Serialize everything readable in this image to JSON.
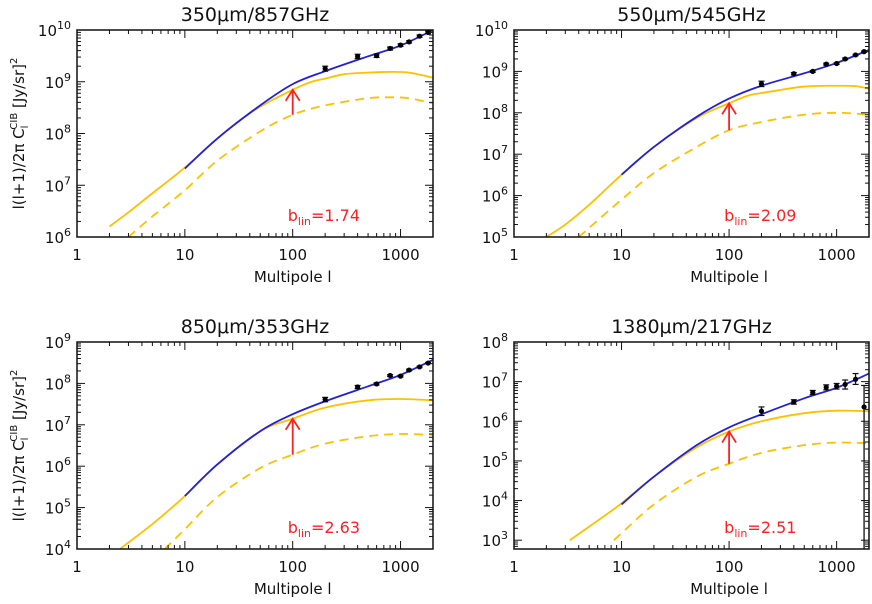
{
  "chart_data": [
    {
      "type": "line",
      "title": "350μm/857GHz",
      "xlabel": "Multipole l",
      "ylabel": "l(l+1)/2π C_l^CIB [Jy/sr]^2",
      "xscale": "log",
      "yscale": "log",
      "xlim": [
        1,
        2000
      ],
      "ylim": [
        1000000.0,
        10000000000.0
      ],
      "xtick_labels": [
        "1",
        "10",
        "100",
        "1000"
      ],
      "ytick_labels": [
        "10^6",
        "10^7",
        "10^8",
        "10^9",
        "10^10"
      ],
      "annotation": {
        "text": "b",
        "sub": "lin",
        "value": "=1.74"
      },
      "arrow": {
        "x": 100,
        "from": 230000000.0,
        "to": 700000000.0,
        "color": "#ff2020"
      },
      "series": [
        {
          "style": "solid",
          "color": "#ffc000",
          "x": [
            2,
            3,
            5,
            10,
            20,
            30,
            50,
            100,
            150,
            200,
            300,
            500,
            800,
            1200,
            2000
          ],
          "y": [
            1600000.0,
            3000000.0,
            7000000.0,
            22000000.0,
            80000000.0,
            160000000.0,
            330000000.0,
            700000000.0,
            1000000000.0,
            1150000000.0,
            1400000000.0,
            1500000000.0,
            1550000000.0,
            1500000000.0,
            1200000000.0
          ]
        },
        {
          "style": "dashed",
          "color": "#ffc000",
          "x": [
            3,
            5,
            10,
            20,
            50,
            100,
            200,
            500,
            800,
            1200,
            2000
          ],
          "y": [
            1000000.0,
            2500000.0,
            8000000.0,
            30000000.0,
            110000000.0,
            230000000.0,
            350000000.0,
            480000000.0,
            500000000.0,
            480000000.0,
            380000000.0
          ]
        },
        {
          "style": "solid",
          "color": "#2020e0",
          "x": [
            10,
            20,
            50,
            100,
            200,
            500,
            1000,
            2000
          ],
          "y": [
            21000000.0,
            80000000.0,
            350000000.0,
            900000000.0,
            1600000000.0,
            3100000000.0,
            5000000000.0,
            10000000000.0
          ]
        },
        {
          "style": "points",
          "color": "#000000",
          "x": [
            200,
            400,
            600,
            800,
            1000,
            1200,
            1500,
            1800
          ],
          "y": [
            1800000000.0,
            3100000000.0,
            3200000000.0,
            4400000000.0,
            5100000000.0,
            5900000000.0,
            7600000000.0,
            9000000000.0
          ],
          "err_lo": [
            1600000000.0,
            2800000000.0,
            2950000000.0,
            4100000000.0,
            4800000000.0,
            5600000000.0,
            7200000000.0,
            8500000000.0
          ],
          "err_hi": [
            2000000000.0,
            3400000000.0,
            3450000000.0,
            4700000000.0,
            5400000000.0,
            6200000000.0,
            8000000000.0,
            9500000000.0
          ]
        }
      ]
    },
    {
      "type": "line",
      "title": "550μm/545GHz",
      "xlabel": "Multipole l",
      "ylabel": "",
      "xscale": "log",
      "yscale": "log",
      "xlim": [
        1,
        2000
      ],
      "ylim": [
        100000.0,
        10000000000.0
      ],
      "xtick_labels": [
        "1",
        "10",
        "100",
        "1000"
      ],
      "ytick_labels": [
        "10^5",
        "10^6",
        "10^7",
        "10^8",
        "10^9",
        "10^10"
      ],
      "annotation": {
        "text": "b",
        "sub": "lin",
        "value": "=2.09"
      },
      "arrow": {
        "x": 100,
        "from": 38000000.0,
        "to": 170000000.0,
        "color": "#ff2020"
      },
      "series": [
        {
          "style": "solid",
          "color": "#ffc000",
          "x": [
            2,
            3,
            5,
            10,
            20,
            50,
            100,
            150,
            200,
            500,
            1000,
            1500,
            2000
          ],
          "y": [
            100000.0,
            200000.0,
            600000.0,
            3200000.0,
            15000000.0,
            75000000.0,
            170000000.0,
            260000000.0,
            300000000.0,
            430000000.0,
            450000000.0,
            440000000.0,
            380000000.0
          ]
        },
        {
          "style": "dashed",
          "color": "#ffc000",
          "x": [
            4,
            10,
            20,
            50,
            100,
            200,
            500,
            1000,
            2000
          ],
          "y": [
            100000.0,
            800000.0,
            3500000.0,
            15000000.0,
            38000000.0,
            60000000.0,
            90000000.0,
            100000000.0,
            90000000.0
          ]
        },
        {
          "style": "solid",
          "color": "#2020e0",
          "x": [
            10,
            20,
            50,
            100,
            200,
            500,
            1000,
            2000
          ],
          "y": [
            3200000.0,
            15000000.0,
            80000000.0,
            220000000.0,
            450000000.0,
            900000000.0,
            1600000000.0,
            3300000000.0
          ]
        },
        {
          "style": "points",
          "color": "#000000",
          "x": [
            200,
            400,
            600,
            800,
            1000,
            1200,
            1500,
            1800
          ],
          "y": [
            500000000.0,
            880000000.0,
            1000000000.0,
            1500000000.0,
            1550000000.0,
            2000000000.0,
            2500000000.0,
            3000000000.0
          ],
          "err_lo": [
            430000000.0,
            820000000.0,
            950000000.0,
            1420000000.0,
            1480000000.0,
            1900000000.0,
            2400000000.0,
            2900000000.0
          ],
          "err_hi": [
            580000000.0,
            940000000.0,
            1050000000.0,
            1580000000.0,
            1620000000.0,
            2100000000.0,
            2600000000.0,
            3100000000.0
          ]
        }
      ]
    },
    {
      "type": "line",
      "title": "850μm/353GHz",
      "xlabel": "Multipole l",
      "ylabel": "l(l+1)/2π C_l^CIB [Jy/sr]^2",
      "xscale": "log",
      "yscale": "log",
      "xlim": [
        1,
        2000
      ],
      "ylim": [
        10000.0,
        1000000000.0
      ],
      "xtick_labels": [
        "1",
        "10",
        "100",
        "1000"
      ],
      "ytick_labels": [
        "10^4",
        "10^5",
        "10^6",
        "10^7",
        "10^8",
        "10^9"
      ],
      "annotation": {
        "text": "b",
        "sub": "lin",
        "value": "=2.63"
      },
      "arrow": {
        "x": 100,
        "from": 1900000.0,
        "to": 14000000.0,
        "color": "#ff2020"
      },
      "series": [
        {
          "style": "solid",
          "color": "#ffc000",
          "x": [
            2.5,
            5,
            10,
            20,
            50,
            100,
            200,
            500,
            1000,
            2000
          ],
          "y": [
            10000.0,
            40000.0,
            190000.0,
            1100000.0,
            7000000.0,
            14000000.0,
            26000000.0,
            39000000.0,
            42000000.0,
            39000000.0
          ]
        },
        {
          "style": "dashed",
          "color": "#ffc000",
          "x": [
            6.5,
            10,
            20,
            50,
            100,
            200,
            500,
            1000,
            2000
          ],
          "y": [
            10000.0,
            30000.0,
            180000.0,
            900000.0,
            1900000.0,
            3500000.0,
            5300000.0,
            6000000.0,
            5700000.0
          ]
        },
        {
          "style": "solid",
          "color": "#2020e0",
          "x": [
            10,
            20,
            50,
            100,
            200,
            500,
            1000,
            2000
          ],
          "y": [
            190000.0,
            1100000.0,
            7000000.0,
            18000000.0,
            37000000.0,
            85000000.0,
            160000000.0,
            370000000.0
          ]
        },
        {
          "style": "points",
          "color": "#000000",
          "x": [
            200,
            400,
            600,
            800,
            1000,
            1200,
            1500,
            1800
          ],
          "y": [
            41000000.0,
            82000000.0,
            97000000.0,
            155000000.0,
            150000000.0,
            210000000.0,
            250000000.0,
            310000000.0
          ],
          "err_lo": [
            36000000.0,
            75000000.0,
            91000000.0,
            147000000.0,
            143000000.0,
            200000000.0,
            240000000.0,
            300000000.0
          ],
          "err_hi": [
            46000000.0,
            89000000.0,
            103000000.0,
            163000000.0,
            157000000.0,
            220000000.0,
            260000000.0,
            320000000.0
          ]
        }
      ]
    },
    {
      "type": "line",
      "title": "1380μm/217GHz",
      "xlabel": "Multipole l",
      "ylabel": "",
      "xscale": "log",
      "yscale": "log",
      "xlim": [
        1,
        2000
      ],
      "ylim": [
        600,
        100000000.0
      ],
      "xtick_labels": [
        "1",
        "10",
        "100",
        "1000"
      ],
      "ytick_labels": [
        "10^3",
        "10^4",
        "10^5",
        "10^6",
        "10^7",
        "10^8"
      ],
      "annotation": {
        "text": "b",
        "sub": "lin",
        "value": "=2.51"
      },
      "arrow": {
        "x": 100,
        "from": 85000.0,
        "to": 550000.0,
        "color": "#ff2020"
      },
      "series": [
        {
          "style": "solid",
          "color": "#ffc000",
          "x": [
            3.3,
            5,
            10,
            20,
            50,
            100,
            200,
            500,
            1000,
            2000
          ],
          "y": [
            1000.0,
            2200.0,
            8500.0,
            40000.0,
            220000.0,
            550000.0,
            1000000.0,
            1600000.0,
            1850000.0,
            1800000.0
          ]
        },
        {
          "style": "dashed",
          "color": "#ffc000",
          "x": [
            8.5,
            10,
            20,
            50,
            100,
            200,
            500,
            1000,
            2000
          ],
          "y": [
            1000.0,
            1500.0,
            8000.0,
            40000.0,
            85000.0,
            160000.0,
            250000.0,
            290000.0,
            280000.0
          ]
        },
        {
          "style": "solid",
          "color": "#2020e0",
          "x": [
            10,
            20,
            50,
            100,
            200,
            500,
            1000,
            2000
          ],
          "y": [
            8000.0,
            40000.0,
            250000.0,
            700000.0,
            1500000.0,
            3800000.0,
            7000000.0,
            16000000.0
          ]
        },
        {
          "style": "points",
          "color": "#000000",
          "x": [
            200,
            400,
            600,
            800,
            1000,
            1200,
            1500,
            1800
          ],
          "y": [
            1800000.0,
            3100000.0,
            5300000.0,
            7200000.0,
            7700000.0,
            8500000.0,
            11500000.0,
            2300000.0
          ],
          "err_lo": [
            1400000.0,
            2700000.0,
            4700000.0,
            6200000.0,
            6500000.0,
            6500000.0,
            8500000.0,
            600
          ],
          "err_hi": [
            2300000.0,
            3500000.0,
            6000000.0,
            8300000.0,
            9000000.0,
            11000000.0,
            16000000.0,
            8000000.0
          ]
        }
      ]
    }
  ]
}
